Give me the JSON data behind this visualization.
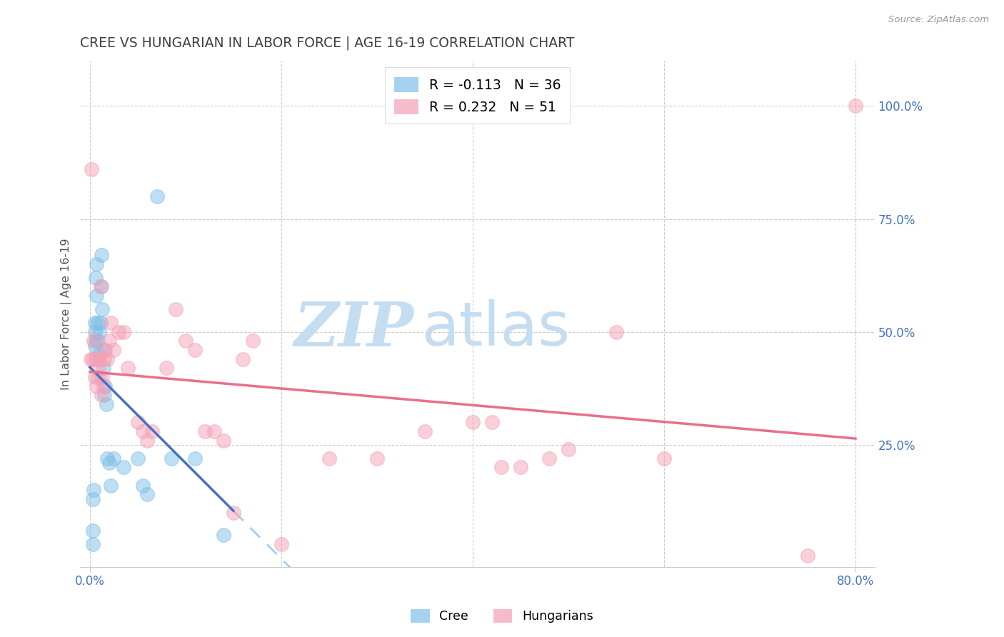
{
  "title": "CREE VS HUNGARIAN IN LABOR FORCE | AGE 16-19 CORRELATION CHART",
  "source": "Source: ZipAtlas.com",
  "ylabel": "In Labor Force | Age 16-19",
  "x_tick_labels_bottom": [
    "0.0%",
    "80.0%"
  ],
  "x_tick_positions_bottom": [
    0.0,
    80.0
  ],
  "y_tick_labels_right": [
    "100.0%",
    "75.0%",
    "50.0%",
    "25.0%"
  ],
  "y_tick_values_right": [
    100.0,
    75.0,
    50.0,
    25.0
  ],
  "xlim": [
    -1.0,
    82.0
  ],
  "ylim": [
    -2.0,
    110.0
  ],
  "cree_color": "#7fbfe8",
  "hungarian_color": "#f4a0b5",
  "cree_label": "Cree",
  "hungarian_label": "Hungarians",
  "cree_R": -0.113,
  "cree_N": 36,
  "hungarian_R": 0.232,
  "hungarian_N": 51,
  "background_color": "#ffffff",
  "grid_color": "#cccccc",
  "tick_label_color": "#4472c4",
  "title_color": "#404040",
  "watermark_zip": "ZIP",
  "watermark_atlas": "atlas",
  "watermark_color_zip": "#c5ddf0",
  "watermark_color_atlas": "#c5ddf0",
  "regression_blue_color": "#4472c4",
  "regression_pink_color": "#e8708a",
  "regression_dash_color": "#a8ccee",
  "cree_x": [
    0.3,
    0.3,
    0.3,
    0.4,
    0.5,
    0.5,
    0.5,
    0.6,
    0.6,
    0.7,
    0.7,
    0.8,
    0.8,
    1.0,
    1.0,
    1.1,
    1.2,
    1.2,
    1.3,
    1.4,
    1.5,
    1.5,
    1.6,
    1.7,
    1.8,
    2.0,
    2.2,
    2.5,
    3.5,
    5.0,
    5.5,
    6.0,
    7.0,
    8.5,
    11.0,
    14.0
  ],
  "cree_y": [
    3.0,
    6.0,
    13.0,
    15.0,
    47.0,
    50.0,
    52.0,
    48.0,
    62.0,
    58.0,
    65.0,
    48.0,
    52.0,
    45.0,
    50.0,
    52.0,
    60.0,
    67.0,
    55.0,
    42.0,
    46.0,
    36.0,
    38.0,
    34.0,
    22.0,
    21.0,
    16.0,
    22.0,
    20.0,
    22.0,
    16.0,
    14.0,
    80.0,
    22.0,
    22.0,
    5.0
  ],
  "hungarian_x": [
    0.1,
    0.2,
    0.3,
    0.4,
    0.5,
    0.6,
    0.7,
    0.8,
    0.9,
    1.0,
    1.1,
    1.2,
    1.3,
    1.4,
    1.5,
    1.6,
    1.8,
    2.0,
    2.2,
    2.5,
    3.0,
    3.5,
    4.0,
    5.0,
    5.5,
    6.0,
    6.5,
    8.0,
    9.0,
    10.0,
    11.0,
    12.0,
    13.0,
    14.0,
    15.0,
    16.0,
    17.0,
    20.0,
    25.0,
    30.0,
    35.0,
    40.0,
    42.0,
    43.0,
    45.0,
    48.0,
    50.0,
    55.0,
    60.0,
    75.0,
    80.0
  ],
  "hungarian_y": [
    44.0,
    86.0,
    44.0,
    48.0,
    40.0,
    44.0,
    38.0,
    42.0,
    40.0,
    44.0,
    60.0,
    36.0,
    40.0,
    38.0,
    44.0,
    46.0,
    44.0,
    48.0,
    52.0,
    46.0,
    50.0,
    50.0,
    42.0,
    30.0,
    28.0,
    26.0,
    28.0,
    42.0,
    55.0,
    48.0,
    46.0,
    28.0,
    28.0,
    26.0,
    10.0,
    44.0,
    48.0,
    3.0,
    22.0,
    22.0,
    28.0,
    30.0,
    30.0,
    20.0,
    20.0,
    22.0,
    24.0,
    50.0,
    22.0,
    0.5,
    100.0
  ]
}
